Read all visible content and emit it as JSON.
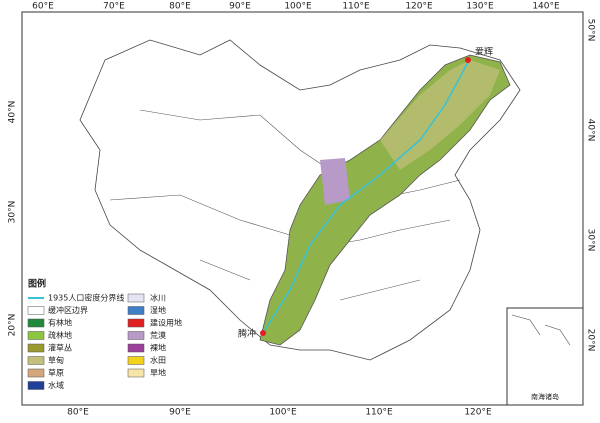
{
  "ticks_top": [
    "60°E",
    "70°E",
    "80°E",
    "90°E",
    "100°E",
    "110°E",
    "120°E",
    "130°E",
    "140°E"
  ],
  "ticks_bottom": [
    "80°E",
    "90°E",
    "100°E",
    "110°E",
    "120°E"
  ],
  "ticks_left": [
    "40°N",
    "30°N",
    "20°N"
  ],
  "ticks_right": [
    "50°N",
    "40°N",
    "30°N",
    "20°N"
  ],
  "places": {
    "north": "爱辉",
    "south": "腾冲"
  },
  "inset": "南海诸岛",
  "legend": {
    "title": "图例",
    "left": [
      {
        "label": "1935人口密度分界线",
        "color": "#36c1d8"
      },
      {
        "label": "缓冲区边界",
        "color": "#ffffff"
      },
      {
        "label": "有林地",
        "color": "#1f8a3c"
      },
      {
        "label": "疏林地",
        "color": "#8cc63f"
      },
      {
        "label": "灌草丛",
        "color": "#9a9a2e"
      },
      {
        "label": "草甸",
        "color": "#c2c07a"
      },
      {
        "label": "草原",
        "color": "#d4a77a"
      },
      {
        "label": "水域",
        "color": "#1f3f9a"
      }
    ],
    "right": [
      {
        "label": "冰川",
        "color": "#e4e4f4"
      },
      {
        "label": "湿地",
        "color": "#3f7fc8"
      },
      {
        "label": "建设用地",
        "color": "#e02020"
      },
      {
        "label": "荒漠",
        "color": "#b89ac8"
      },
      {
        "label": "裸地",
        "color": "#9a3f9a"
      },
      {
        "label": "水田",
        "color": "#f2d21a"
      },
      {
        "label": "旱地",
        "color": "#f6e4a8"
      }
    ]
  }
}
